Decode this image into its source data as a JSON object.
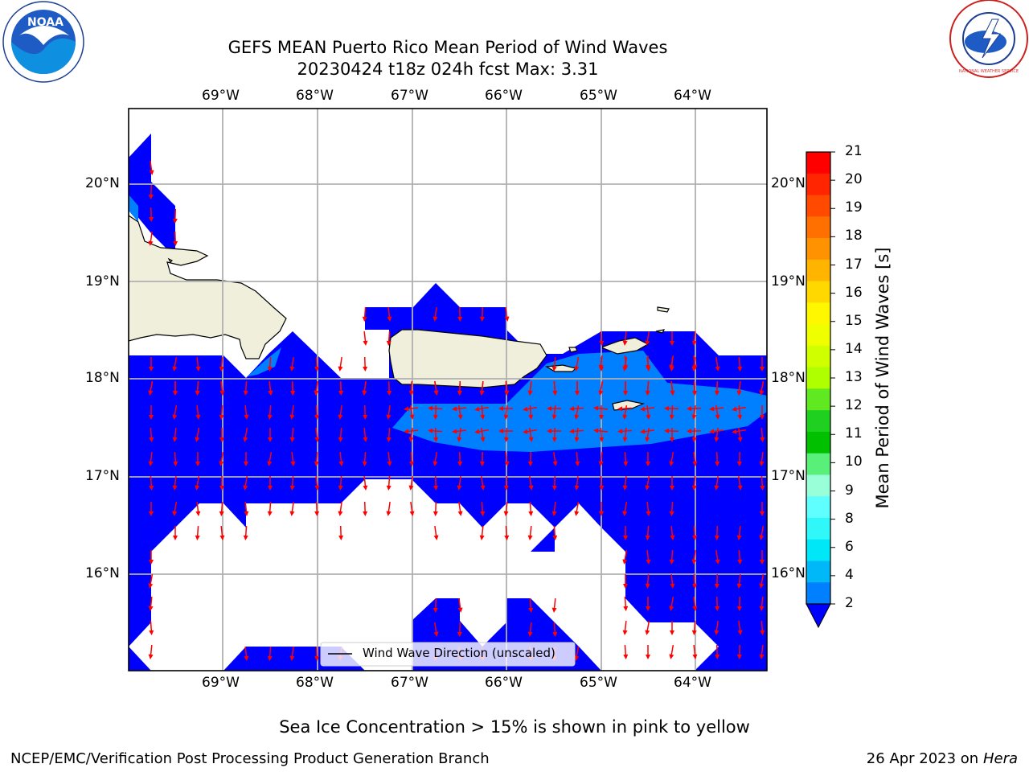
{
  "title": {
    "line1": "GEFS MEAN Puerto Rico Mean Period of Wind Waves",
    "line2": "20230424 t18z 024h fcst   Max: 3.31"
  },
  "axes": {
    "lon_labels": [
      "69°W",
      "68°W",
      "67°W",
      "66°W",
      "65°W",
      "64°W"
    ],
    "lat_labels": [
      "20°N",
      "19°N",
      "18°N",
      "17°N",
      "16°N"
    ]
  },
  "legend": {
    "label": "Wind Wave Direction (unscaled)"
  },
  "colorbar": {
    "label": "Mean Period of Wind Waves [s]",
    "ticks": [
      "21",
      "20",
      "19",
      "18",
      "17",
      "16",
      "15",
      "14",
      "13",
      "12",
      "11",
      "10",
      "9",
      "8",
      "6",
      "4",
      "2"
    ],
    "colors": [
      "#ff0000",
      "#ff2500",
      "#ff4a00",
      "#ff7000",
      "#ff9200",
      "#ffb400",
      "#ffd800",
      "#fff700",
      "#f0ff00",
      "#d0ff00",
      "#b0ff00",
      "#60e820",
      "#20d020",
      "#00c000",
      "#58f078",
      "#98ffd8",
      "#60ffff",
      "#30f8f8",
      "#00e8f8",
      "#00b8f8",
      "#0080ff"
    ],
    "under_color": "#0000ff"
  },
  "chart_data": {
    "type": "map",
    "variable": "Mean Period of Wind Waves [s]",
    "max_value": 3.31,
    "lon_range": [
      -69.99,
      -63.25
    ],
    "lat_range": [
      15.0,
      20.8
    ],
    "grid": true
  },
  "colors": {
    "ocean_low": "#0000ff",
    "ocean_mid": "#0080ff",
    "land": "#efefdc",
    "arrow": "#ff0000",
    "grid": "#b0b0b0"
  },
  "footer": {
    "note": "Sea Ice Concentration > 15% is shown in pink to yellow",
    "left": "NCEP/EMC/Verification Post Processing Product Generation Branch",
    "date": "26 Apr 2023 on ",
    "host": "Hera"
  },
  "logos": {
    "noaa": "NOAA",
    "nws": "NATIONAL WEATHER SERVICE"
  }
}
